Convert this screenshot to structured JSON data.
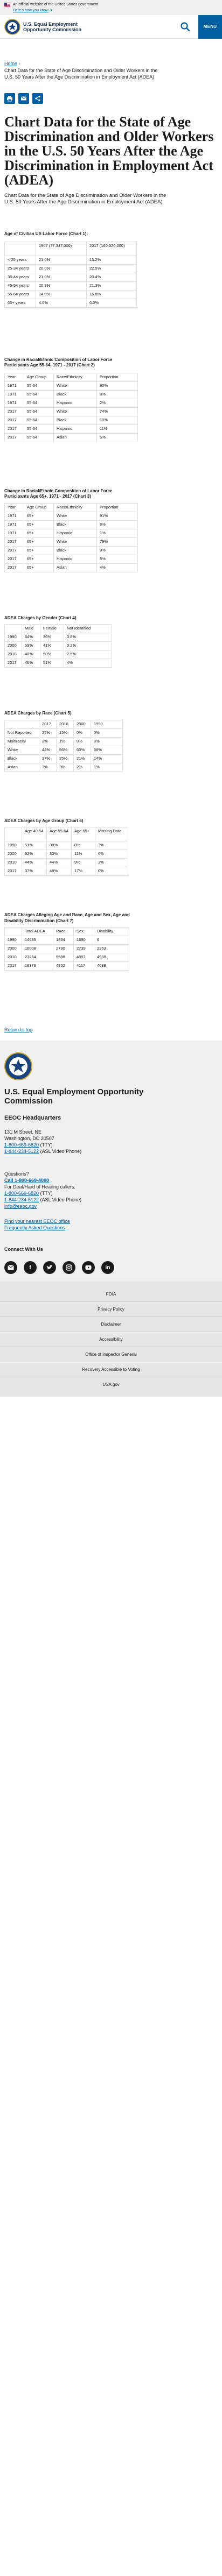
{
  "gov_banner": {
    "text": "An official website of the United States government",
    "how": "Here's how you know"
  },
  "header": {
    "agency": "U.S. Equal Employment Opportunity Commission",
    "menu": "MENU"
  },
  "breadcrumb": {
    "home": "Home",
    "current": "Chart Data for the State of Age Discrimination and Older Workers in the U.S. 50 Years After the Age Discrimination in Employment Act (ADEA)"
  },
  "title": "Chart Data for the State of Age Discrimination and Older Workers in the U.S. 50 Years After the Age Discrimination in Employment Act (ADEA)",
  "intro": "Chart Data for the State of Age Discrimination and Older Workers in the U.S. 50 Years After the Age Discrimination in Employment Act (ADEA)",
  "tables": {
    "t1": {
      "title": "Age of Civilian US Labor Force (Chart 1):",
      "headers": [
        "",
        "1967 (77,347,000)",
        "2017 (160,320,000)"
      ],
      "rows": [
        [
          "< 25 years",
          "21.0%",
          "13.2%"
        ],
        [
          "25-34 years",
          "20.0%",
          "22.5%"
        ],
        [
          "35-44 years",
          "21.0%",
          "20.4%"
        ],
        [
          "45-54 years",
          "20.9%",
          "21.3%"
        ],
        [
          "55-64 years",
          "14.0%",
          "16.8%"
        ],
        [
          "65+ years",
          "4.0%",
          "6.0%"
        ]
      ]
    },
    "t2": {
      "title": "Change in Racial/Ethnic Composition of Labor Force Participants Age 55-64, 1971 - 2017 (Chart 2)",
      "headers": [
        "Year",
        "Age Group",
        "Race/Ethnicity",
        "Proportion"
      ],
      "rows": [
        [
          "1971",
          "55-64",
          "White",
          "90%"
        ],
        [
          "1971",
          "55-64",
          "Black",
          "8%"
        ],
        [
          "1971",
          "55-64",
          "Hispanic",
          "2%"
        ],
        [
          "2017",
          "55-64",
          "White",
          "74%"
        ],
        [
          "2017",
          "55-64",
          "Black",
          "10%"
        ],
        [
          "2017",
          "55-64",
          "Hispanic",
          "11%"
        ],
        [
          "2017",
          "55-64",
          "Asian",
          "5%"
        ]
      ]
    },
    "t3": {
      "title": "Change in Racial/Ethnic Composition of Labor Force Participants Age 65+, 1971 - 2017 (Chart 3)",
      "headers": [
        "Year",
        "Age Group",
        "Race/Ethnicity",
        "Proportion"
      ],
      "rows": [
        [
          "1971",
          "65+",
          "White",
          "91%"
        ],
        [
          "1971",
          "65+",
          "Black",
          "8%"
        ],
        [
          "1971",
          "65+",
          "Hispanic",
          "1%"
        ],
        [
          "2017",
          "65+",
          "White",
          "79%"
        ],
        [
          "2017",
          "65+",
          "Black",
          "9%"
        ],
        [
          "2017",
          "65+",
          "Hispanic",
          "8%"
        ],
        [
          "2017",
          "65+",
          "Asian",
          "4%"
        ]
      ]
    },
    "t4": {
      "title": "ADEA Charges by Gender (Chart 4)",
      "headers": [
        "",
        "Male",
        "Female",
        "Not Identified"
      ],
      "rows": [
        [
          "1990",
          "64%",
          "36%",
          "0.8%"
        ],
        [
          "2000",
          "59%",
          "41%",
          "0.2%"
        ],
        [
          "2010",
          "48%",
          "50%",
          "2.6%"
        ],
        [
          "2017",
          "46%",
          "51%",
          "4%"
        ]
      ]
    },
    "t5": {
      "title": "ADEA Charges by Race (Chart 5)",
      "headers": [
        "",
        "2017",
        "2010",
        "2000",
        "1990"
      ],
      "rows": [
        [
          "Not Reported",
          "25%",
          "15%",
          "0%",
          "0%"
        ],
        [
          "Multiracial",
          "2%",
          "1%",
          "0%",
          "0%"
        ],
        [
          "White",
          "44%",
          "56%",
          "60%",
          "68%"
        ],
        [
          "Black",
          "27%",
          "25%",
          "21%",
          "14%"
        ],
        [
          "Asian",
          "3%",
          "3%",
          "2%",
          "1%"
        ]
      ]
    },
    "t6": {
      "title": "ADEA Charges by Age Group (Chart 6)",
      "headers": [
        "",
        "Age 40-54",
        "Age 55-64",
        "Age 65+",
        "Missing Data"
      ],
      "rows": [
        [
          "1990",
          "51%",
          "38%",
          "8%",
          "3%"
        ],
        [
          "2000",
          "52%",
          "33%",
          "11%",
          "6%"
        ],
        [
          "2010",
          "44%",
          "44%",
          "9%",
          "3%"
        ],
        [
          "2017",
          "37%",
          "48%",
          "17%",
          "0%"
        ]
      ]
    },
    "t7": {
      "title": "ADEA Charges Alleging Age and Race, Age and Sex, Age and Disability Discrimination (Chart 7)",
      "headers": [
        "",
        "Total ADEA",
        "Race",
        "Sex",
        "Disability"
      ],
      "rows": [
        [
          "1990",
          "14685",
          "1834",
          "1690",
          "0"
        ],
        [
          "2000",
          "16008",
          "2790",
          "2739",
          "2263"
        ],
        [
          "2010",
          "23264",
          "5588",
          "4897",
          "4938"
        ],
        [
          "2017",
          "18376",
          "4852",
          "4117",
          "4638"
        ]
      ]
    }
  },
  "return_top": "Return to top",
  "footer": {
    "agency": "U.S. Equal Employment Opportunity Commission",
    "hq_title": "EEOC Headquarters",
    "address_1": "131 M Street, NE",
    "address_2": "Washington, DC 20507",
    "phone_tty": "1-800-669-6820",
    "phone_tty_label": "(TTY)",
    "phone_asl": "1-844-234-5122",
    "phone_asl_label": "(ASL Video Phone)",
    "questions": "Questions?",
    "call": "Call 1-800-669-4000",
    "deaf_label": "For Deaf/Hard of Hearing callers:",
    "q_tty": "1-800-669-6820",
    "q_tty_label": "(TTY)",
    "q_asl": "1-844-234-5122",
    "q_asl_label": "(ASL Video Phone)",
    "email": "info@eeoc.gov",
    "find_office": "Find your nearest EEOC office",
    "faq": "Frequently Asked Questions",
    "connect": "Connect With Us",
    "nav": [
      "FOIA",
      "Privacy Policy",
      "Disclaimer",
      "Accessibility",
      "Office of Inspector General",
      "Recovery Accessible to Voting",
      "USA.gov"
    ]
  }
}
